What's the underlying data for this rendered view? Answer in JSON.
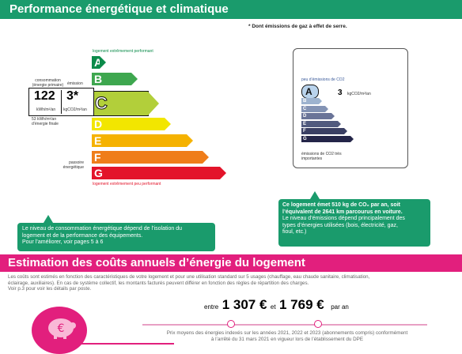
{
  "section1": {
    "title": "Performance énergétique et climatique",
    "footnote": "* Dont émissions de gaz à effet de serre."
  },
  "energy_scale": {
    "top_label": "logement extrêmement performant",
    "bottom_label": "logement extrêmement peu performant",
    "classes": [
      {
        "letter": "A",
        "color": "#0b8b4a"
      },
      {
        "letter": "B",
        "color": "#3ea74f"
      },
      {
        "letter": "C",
        "color": "#b2cf3a"
      },
      {
        "letter": "D",
        "color": "#f2e600"
      },
      {
        "letter": "E",
        "color": "#f5b200"
      },
      {
        "letter": "F",
        "color": "#ef7d1a"
      },
      {
        "letter": "G",
        "color": "#e3142a"
      }
    ],
    "current_class": "C",
    "consumption_header": "consommation (énergie primaire)",
    "emission_header": "émission",
    "consumption_value": "122",
    "consumption_unit": "kWh/m²/an",
    "emission_value": "3*",
    "emission_unit": "kgCO2/m²/an",
    "final_energy": "53 kWh/m²/an d’énergie finale",
    "passoire": "passoire énergétique"
  },
  "ges_scale": {
    "title": "peu d’émissions de CO2",
    "bottom_label": "émissions de CO2 très importantes",
    "classes": [
      {
        "letter": "A",
        "color": "#b9d3ec"
      },
      {
        "letter": "B",
        "color": "#9db3cf"
      },
      {
        "letter": "C",
        "color": "#8393b4"
      },
      {
        "letter": "D",
        "color": "#6a7498"
      },
      {
        "letter": "E",
        "color": "#515a7e"
      },
      {
        "letter": "F",
        "color": "#3a3f63"
      },
      {
        "letter": "G",
        "color": "#242548"
      }
    ],
    "current_class": "A",
    "value": "3",
    "unit": "kgCO2/m²/an"
  },
  "bubble_left": {
    "lines": [
      "Le niveau de consommation énergétique dépend de l’isolation du",
      "logement et de la performance des équipements.",
      "Pour l’améliorer, voir pages 5 à 6"
    ]
  },
  "bubble_right": {
    "line1": "Ce logement émet 510  kg de CO₂ par an, soit",
    "line2": "l’équivalent de 2641 km parcourus en voiture.",
    "line3": "Le niveau d’émissions dépend principalement des",
    "line4": "types d’énergies utilisées (bois, électricité, gaz,",
    "line5": "fioul, etc.)"
  },
  "section2": {
    "title": "Estimation des coûts annuels d’énergie du logement",
    "desc1": "Les coûts sont estimés en fonction des caractéristiques de votre logement et pour une utilisation standard sur 5 usages (chauffage, eau chaude sanitaire, climatisation,",
    "desc2": "éclairage, auxiliaires). En cas de système collectif, les montants facturés peuvent différer en fonction des règles de répartition des charges.",
    "desc3": "Voir p.3 pour voir les détails par poste.",
    "cost_between": "entre",
    "cost_min": "1 307 €",
    "cost_and": "et",
    "cost_max": "1 769 €",
    "cost_per": "par an",
    "prices1": "Prix moyens des énergies indexés sur les années 2021, 2022 et 2023  (abonnements compris) conformément",
    "prices2": "à l’arrêté du 31 mars 2021 en vigueur lors de l’établissement du DPE"
  }
}
